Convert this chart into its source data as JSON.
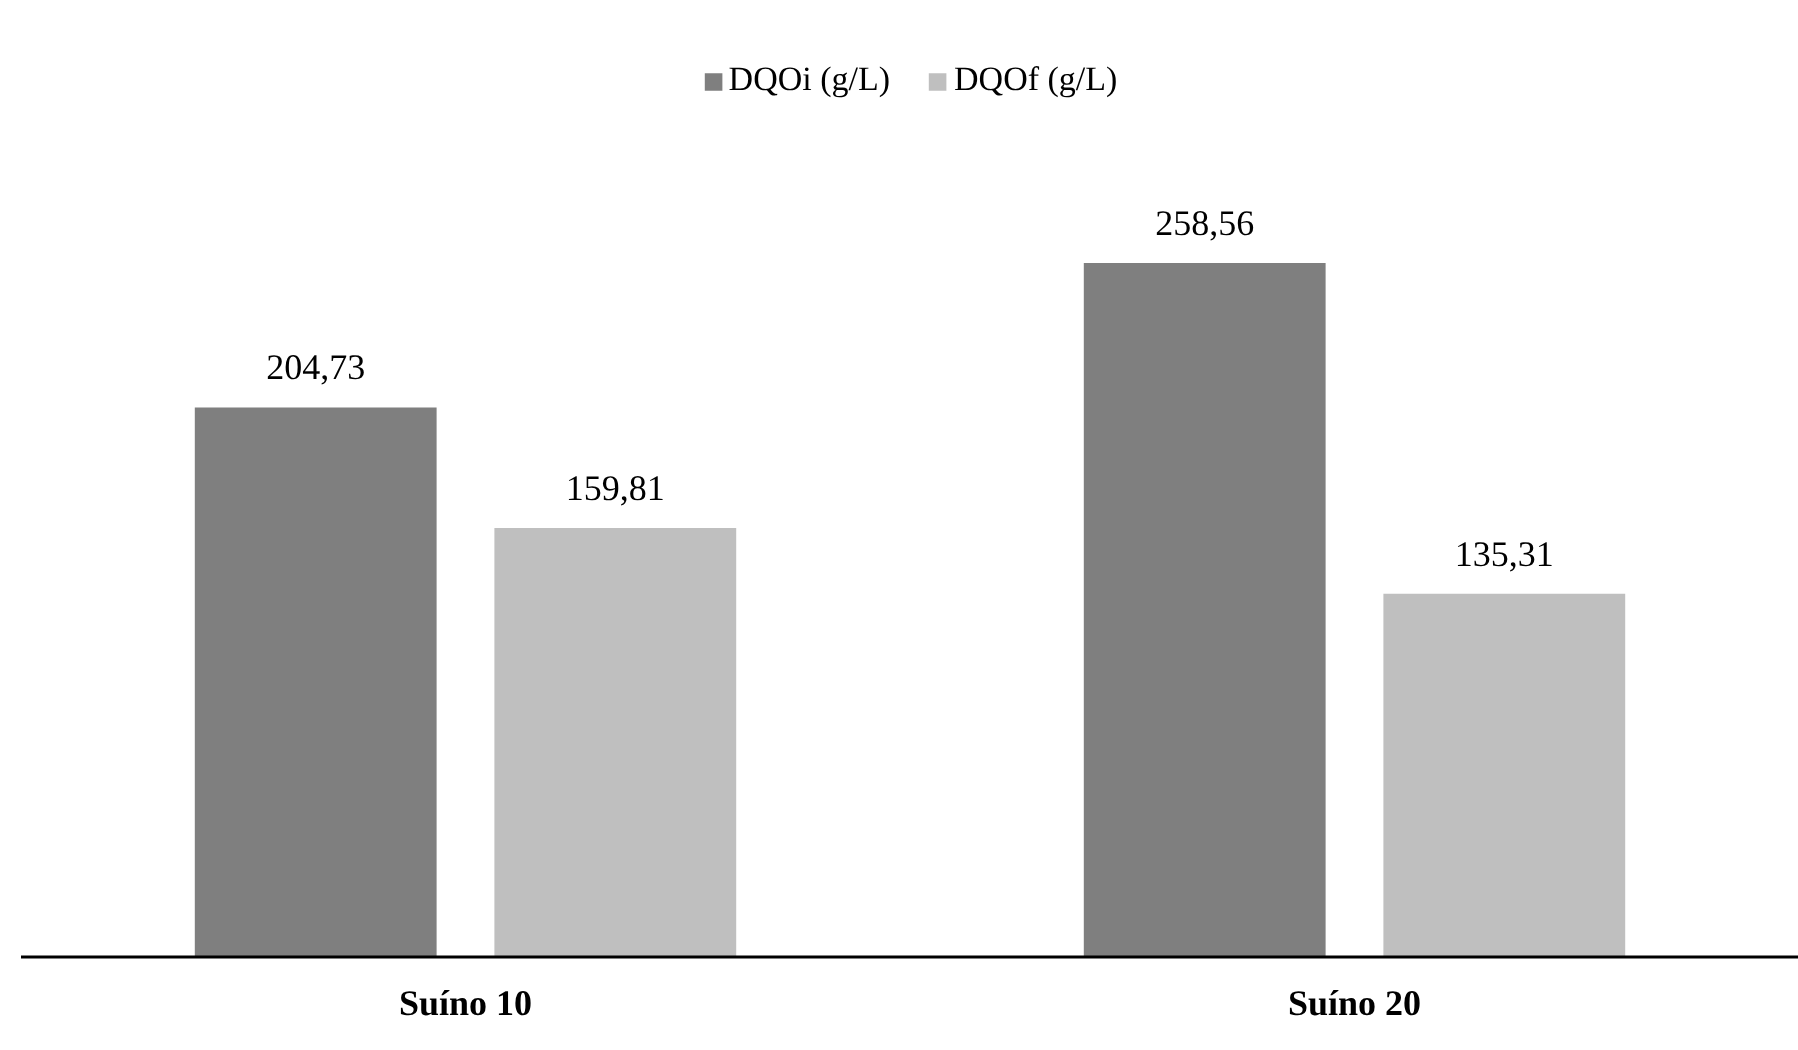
{
  "chart_data": {
    "type": "bar",
    "categories": [
      "Suíno 10",
      "Suíno 20"
    ],
    "series": [
      {
        "name": "DQOi (g/L)",
        "color": "#7f7f7f",
        "values": [
          204.73,
          258.56
        ],
        "value_labels": [
          "204,73",
          "258,56"
        ]
      },
      {
        "name": "DQOf (g/L)",
        "color": "#bfbfbf",
        "values": [
          159.81,
          135.31
        ],
        "value_labels": [
          "159,81",
          "135,31"
        ]
      }
    ],
    "tick_labels": "x",
    "legend": "top"
  }
}
